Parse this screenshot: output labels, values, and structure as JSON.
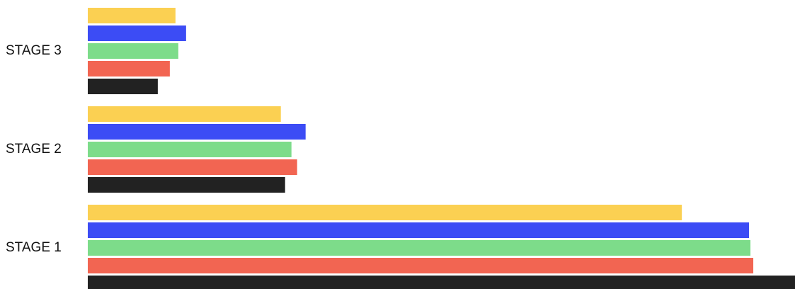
{
  "chart_data": {
    "type": "bar",
    "orientation": "horizontal",
    "categories": [
      "STAGE 3",
      "STAGE 2",
      "STAGE 1"
    ],
    "series": [
      {
        "color": "#fbd052",
        "values": [
          124,
          273,
          840
        ]
      },
      {
        "color": "#3c4cf5",
        "values": [
          139,
          308,
          935
        ]
      },
      {
        "color": "#7ddc8a",
        "values": [
          128,
          288,
          937
        ]
      },
      {
        "color": "#f26552",
        "values": [
          116,
          296,
          941
        ]
      },
      {
        "color": "#222222",
        "values": [
          99,
          279,
          1000
        ]
      }
    ],
    "xlim": [
      0,
      1000
    ],
    "grid": false,
    "legend": "none"
  }
}
